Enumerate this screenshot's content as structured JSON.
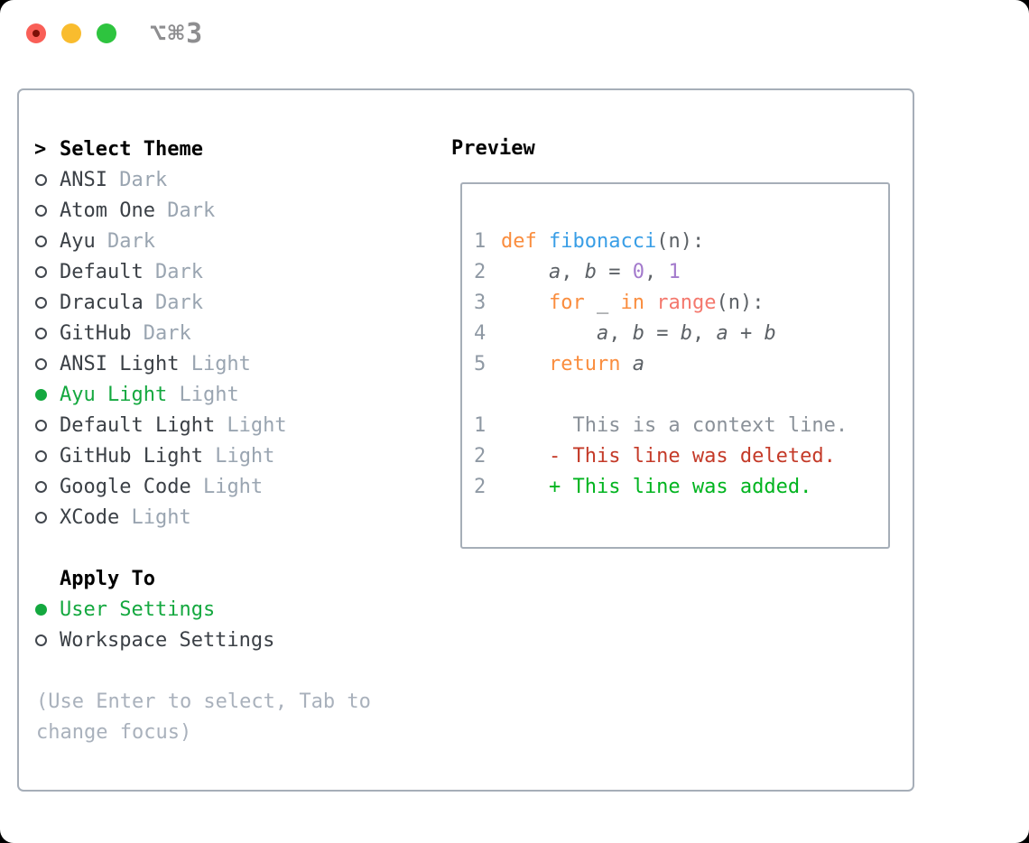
{
  "window": {
    "title": "⌥⌘3",
    "buttons": [
      "close",
      "minimize",
      "zoom"
    ]
  },
  "theme_list": {
    "focus_marker": ">",
    "header": "Select Theme",
    "items": [
      {
        "name": "ANSI",
        "variant": "Dark",
        "selected": false
      },
      {
        "name": "Atom One",
        "variant": "Dark",
        "selected": false
      },
      {
        "name": "Ayu",
        "variant": "Dark",
        "selected": false
      },
      {
        "name": "Default",
        "variant": "Dark",
        "selected": false
      },
      {
        "name": "Dracula",
        "variant": "Dark",
        "selected": false
      },
      {
        "name": "GitHub",
        "variant": "Dark",
        "selected": false
      },
      {
        "name": "ANSI Light",
        "variant": "Light",
        "selected": false
      },
      {
        "name": "Ayu Light",
        "variant": "Light",
        "selected": true
      },
      {
        "name": "Default Light",
        "variant": "Light",
        "selected": false
      },
      {
        "name": "GitHub Light",
        "variant": "Light",
        "selected": false
      },
      {
        "name": "Google Code",
        "variant": "Light",
        "selected": false
      },
      {
        "name": "XCode",
        "variant": "Light",
        "selected": false
      }
    ]
  },
  "apply_to": {
    "header": "Apply To",
    "options": [
      {
        "label": "User Settings",
        "selected": true
      },
      {
        "label": "Workspace Settings",
        "selected": false
      }
    ]
  },
  "help_lines": [
    "(Use Enter to select, Tab to",
    "change focus)"
  ],
  "preview": {
    "header": "Preview",
    "lines": [
      {
        "kind": "code",
        "num": "1",
        "segs": [
          {
            "t": "def ",
            "c": "kw"
          },
          {
            "t": "fibonacci",
            "c": "fn"
          },
          {
            "t": "(n):",
            "c": "plain"
          }
        ]
      },
      {
        "kind": "code",
        "num": "2",
        "segs": [
          {
            "t": "    ",
            "c": "plain"
          },
          {
            "t": "a",
            "c": "it"
          },
          {
            "t": ", ",
            "c": "plain"
          },
          {
            "t": "b",
            "c": "it"
          },
          {
            "t": " = ",
            "c": "plain"
          },
          {
            "t": "0",
            "c": "num"
          },
          {
            "t": ", ",
            "c": "plain"
          },
          {
            "t": "1",
            "c": "num"
          }
        ]
      },
      {
        "kind": "code",
        "num": "3",
        "segs": [
          {
            "t": "    ",
            "c": "plain"
          },
          {
            "t": "for",
            "c": "kw"
          },
          {
            "t": " _ ",
            "c": "plain"
          },
          {
            "t": "in",
            "c": "kw"
          },
          {
            "t": " ",
            "c": "plain"
          },
          {
            "t": "range",
            "c": "call"
          },
          {
            "t": "(n):",
            "c": "plain"
          }
        ]
      },
      {
        "kind": "code",
        "num": "4",
        "segs": [
          {
            "t": "        ",
            "c": "plain"
          },
          {
            "t": "a",
            "c": "it"
          },
          {
            "t": ", ",
            "c": "plain"
          },
          {
            "t": "b",
            "c": "it"
          },
          {
            "t": " = ",
            "c": "plain"
          },
          {
            "t": "b",
            "c": "it"
          },
          {
            "t": ", ",
            "c": "plain"
          },
          {
            "t": "a",
            "c": "it"
          },
          {
            "t": " + ",
            "c": "plain"
          },
          {
            "t": "b",
            "c": "it"
          }
        ]
      },
      {
        "kind": "code",
        "num": "5",
        "segs": [
          {
            "t": "    ",
            "c": "plain"
          },
          {
            "t": "return",
            "c": "kw"
          },
          {
            "t": " ",
            "c": "plain"
          },
          {
            "t": "a",
            "c": "it"
          }
        ]
      },
      {
        "kind": "blank",
        "num": "",
        "segs": []
      },
      {
        "kind": "context",
        "num": "1",
        "segs": [
          {
            "t": "      This is a context line.",
            "c": "ctx"
          }
        ]
      },
      {
        "kind": "deleted",
        "num": "2",
        "segs": [
          {
            "t": "    - This line was deleted.",
            "c": "del"
          }
        ]
      },
      {
        "kind": "added",
        "num": "2",
        "segs": [
          {
            "t": "    + This line was added.",
            "c": "add"
          }
        ]
      }
    ]
  },
  "colors": {
    "selection_green": "#14a83f",
    "border_gray": "#a6aeb8",
    "item_text": "#3b4046",
    "variant_gray": "#9aa5b1",
    "help_gray": "#a9b1bc",
    "gutter_gray": "#8f99a4",
    "title_gray": "#8e8e90",
    "traffic_red": "#f95f57",
    "traffic_red_dot": "#7c1007",
    "traffic_yellow": "#f9bc2e",
    "traffic_green": "#2ec43f",
    "syntax": {
      "kw": "#fa8d3e",
      "fn": "#399ee6",
      "num": "#a37acc",
      "call": "#f4786d",
      "plain": "#5c6166",
      "ctx": "#8a9199",
      "del": "#c43a28",
      "add": "#00b41f"
    }
  }
}
